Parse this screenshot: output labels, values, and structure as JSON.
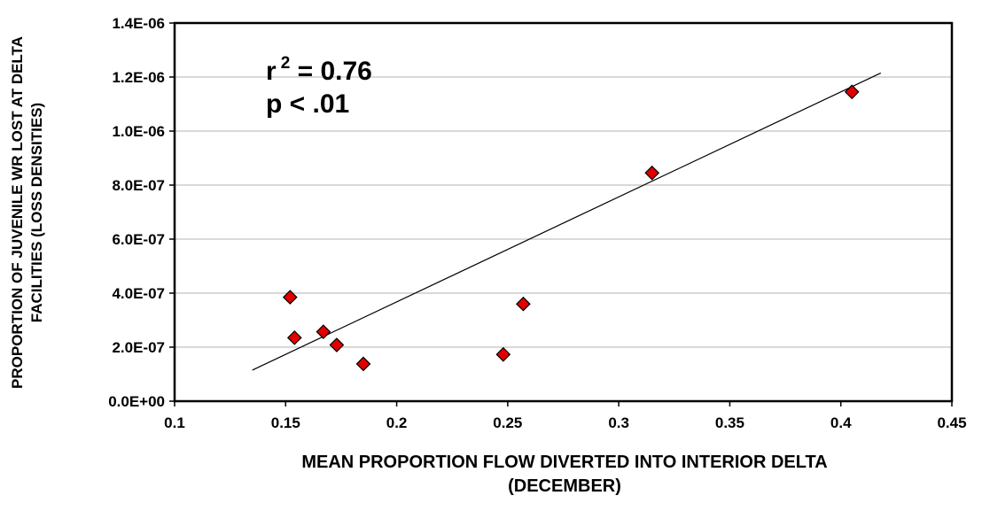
{
  "chart_data": {
    "type": "scatter",
    "title": "",
    "xlabel": [
      "MEAN PROPORTION FLOW DIVERTED INTO INTERIOR DELTA",
      "(DECEMBER)"
    ],
    "ylabel": [
      "PROPORTION OF JUVENILE WR LOST AT DELTA",
      "FACILITIES (LOSS DENSITIES)"
    ],
    "xlim": [
      0.1,
      0.45
    ],
    "ylim": [
      0,
      1.4e-06
    ],
    "x_ticks": [
      0.1,
      0.15,
      0.2,
      0.25,
      0.3,
      0.35,
      0.4,
      0.45
    ],
    "x_tick_labels": [
      "0.1",
      "0.15",
      "0.2",
      "0.25",
      "0.3",
      "0.35",
      "0.4",
      "0.45"
    ],
    "y_ticks": [
      0,
      2e-07,
      4e-07,
      6e-07,
      8e-07,
      1e-06,
      1.2e-06,
      1.4e-06
    ],
    "y_tick_labels": [
      "0.0E+00",
      "2.0E-07",
      "4.0E-07",
      "6.0E-07",
      "8.0E-07",
      "1.0E-06",
      "1.2E-06",
      "1.4E-06"
    ],
    "grid": "horizontal",
    "marker_color": "#e00000",
    "points": [
      {
        "x": 0.152,
        "y": 3.85e-07
      },
      {
        "x": 0.154,
        "y": 2.35e-07
      },
      {
        "x": 0.167,
        "y": 2.57e-07
      },
      {
        "x": 0.173,
        "y": 2.08e-07
      },
      {
        "x": 0.185,
        "y": 1.38e-07
      },
      {
        "x": 0.248,
        "y": 1.73e-07
      },
      {
        "x": 0.257,
        "y": 3.6e-07
      },
      {
        "x": 0.315,
        "y": 8.45e-07
      },
      {
        "x": 0.405,
        "y": 1.145e-06
      }
    ],
    "trendline": {
      "x": [
        0.135,
        0.418
      ],
      "y": [
        1.15e-07,
        1.215e-06
      ]
    },
    "annotations": {
      "r_prefix": "r",
      "r_sup": "2",
      "r_value": " = 0.76",
      "p_text": "p < .01"
    }
  }
}
